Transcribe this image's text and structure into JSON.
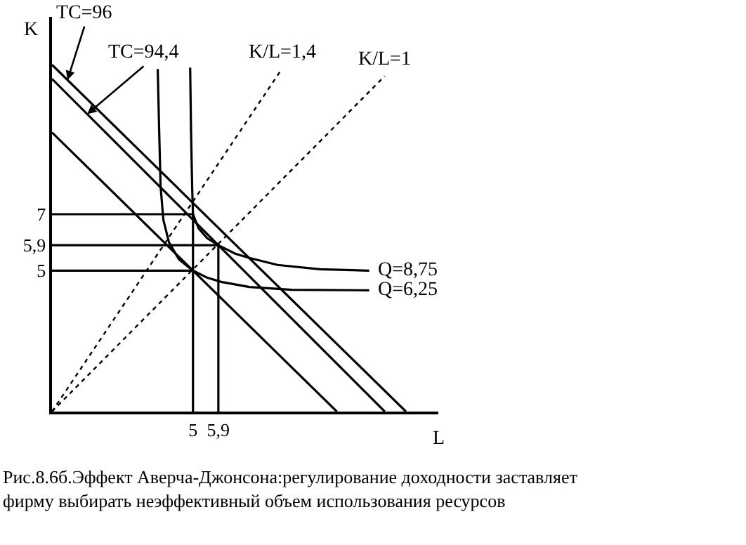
{
  "chart_data": {
    "type": "line",
    "xlabel": "L",
    "ylabel": "K",
    "xlim": [
      0,
      13.7
    ],
    "ylim": [
      0,
      14
    ],
    "xticks": [
      5,
      {
        "value": 5.9,
        "label": "5,9"
      }
    ],
    "yticks": [
      5,
      {
        "value": 5.9,
        "label": "5,9"
      },
      7
    ],
    "legend": false,
    "marker": "none",
    "series": [
      {
        "color": "#000000",
        "x": [
          0,
          12.55
        ],
        "values": [
          12.3,
          0
        ]
      },
      {
        "color": "#000000",
        "x": [
          0,
          11.8
        ],
        "values": [
          11.8,
          0
        ]
      },
      {
        "color": "#000000",
        "x": [
          0,
          10.1
        ],
        "values": [
          9.9,
          0
        ]
      },
      {
        "name": "K/L=1,4",
        "color": "#000000",
        "line_style": "dotted",
        "x": [
          0,
          8.15
        ],
        "values": [
          0,
          12.15
        ]
      },
      {
        "name": "K/L=1",
        "color": "#000000",
        "line_style": "dotted",
        "x": [
          0,
          11.8
        ],
        "values": [
          0,
          11.9
        ]
      },
      {
        "name": "Q=8,75",
        "color": "#000000",
        "x": [
          4.9,
          4.93,
          4.97,
          5,
          5.2,
          5.5,
          5.9,
          6.5,
          7,
          8,
          9.5,
          11.25
        ],
        "values": [
          12.2,
          10,
          8,
          7,
          6.5,
          6.15,
          5.9,
          5.6,
          5.45,
          5.2,
          5.05,
          5.0
        ]
      },
      {
        "name": "Q=6,25",
        "color": "#000000",
        "x": [
          3.75,
          3.8,
          3.85,
          3.95,
          4.15,
          4.5,
          5,
          5.5,
          6,
          7,
          8.5,
          11.25
        ],
        "values": [
          12.15,
          10,
          8,
          6.8,
          6.0,
          5.4,
          5,
          4.75,
          4.6,
          4.42,
          4.32,
          4.3
        ]
      },
      {
        "color": "#000000",
        "x": [
          0,
          5,
          5
        ],
        "values": [
          7,
          7,
          0
        ]
      },
      {
        "color": "#000000",
        "x": [
          0,
          5.9,
          5.9
        ],
        "values": [
          5.9,
          5.9,
          0
        ]
      },
      {
        "color": "#000000",
        "x": [
          0,
          5
        ],
        "values": [
          5,
          5
        ]
      }
    ],
    "annotations": [
      {
        "text": "TC=96",
        "x": 0.55,
        "y": 11.76
      },
      {
        "text": "TC=94,4",
        "x": 1.25,
        "y": 10.55
      },
      "Рис.8.6б.Эффект Аверча-Джонсона:регулирование доходности заставляет фирму выбирать неэффективный объем использования ресурсов"
    ]
  }
}
